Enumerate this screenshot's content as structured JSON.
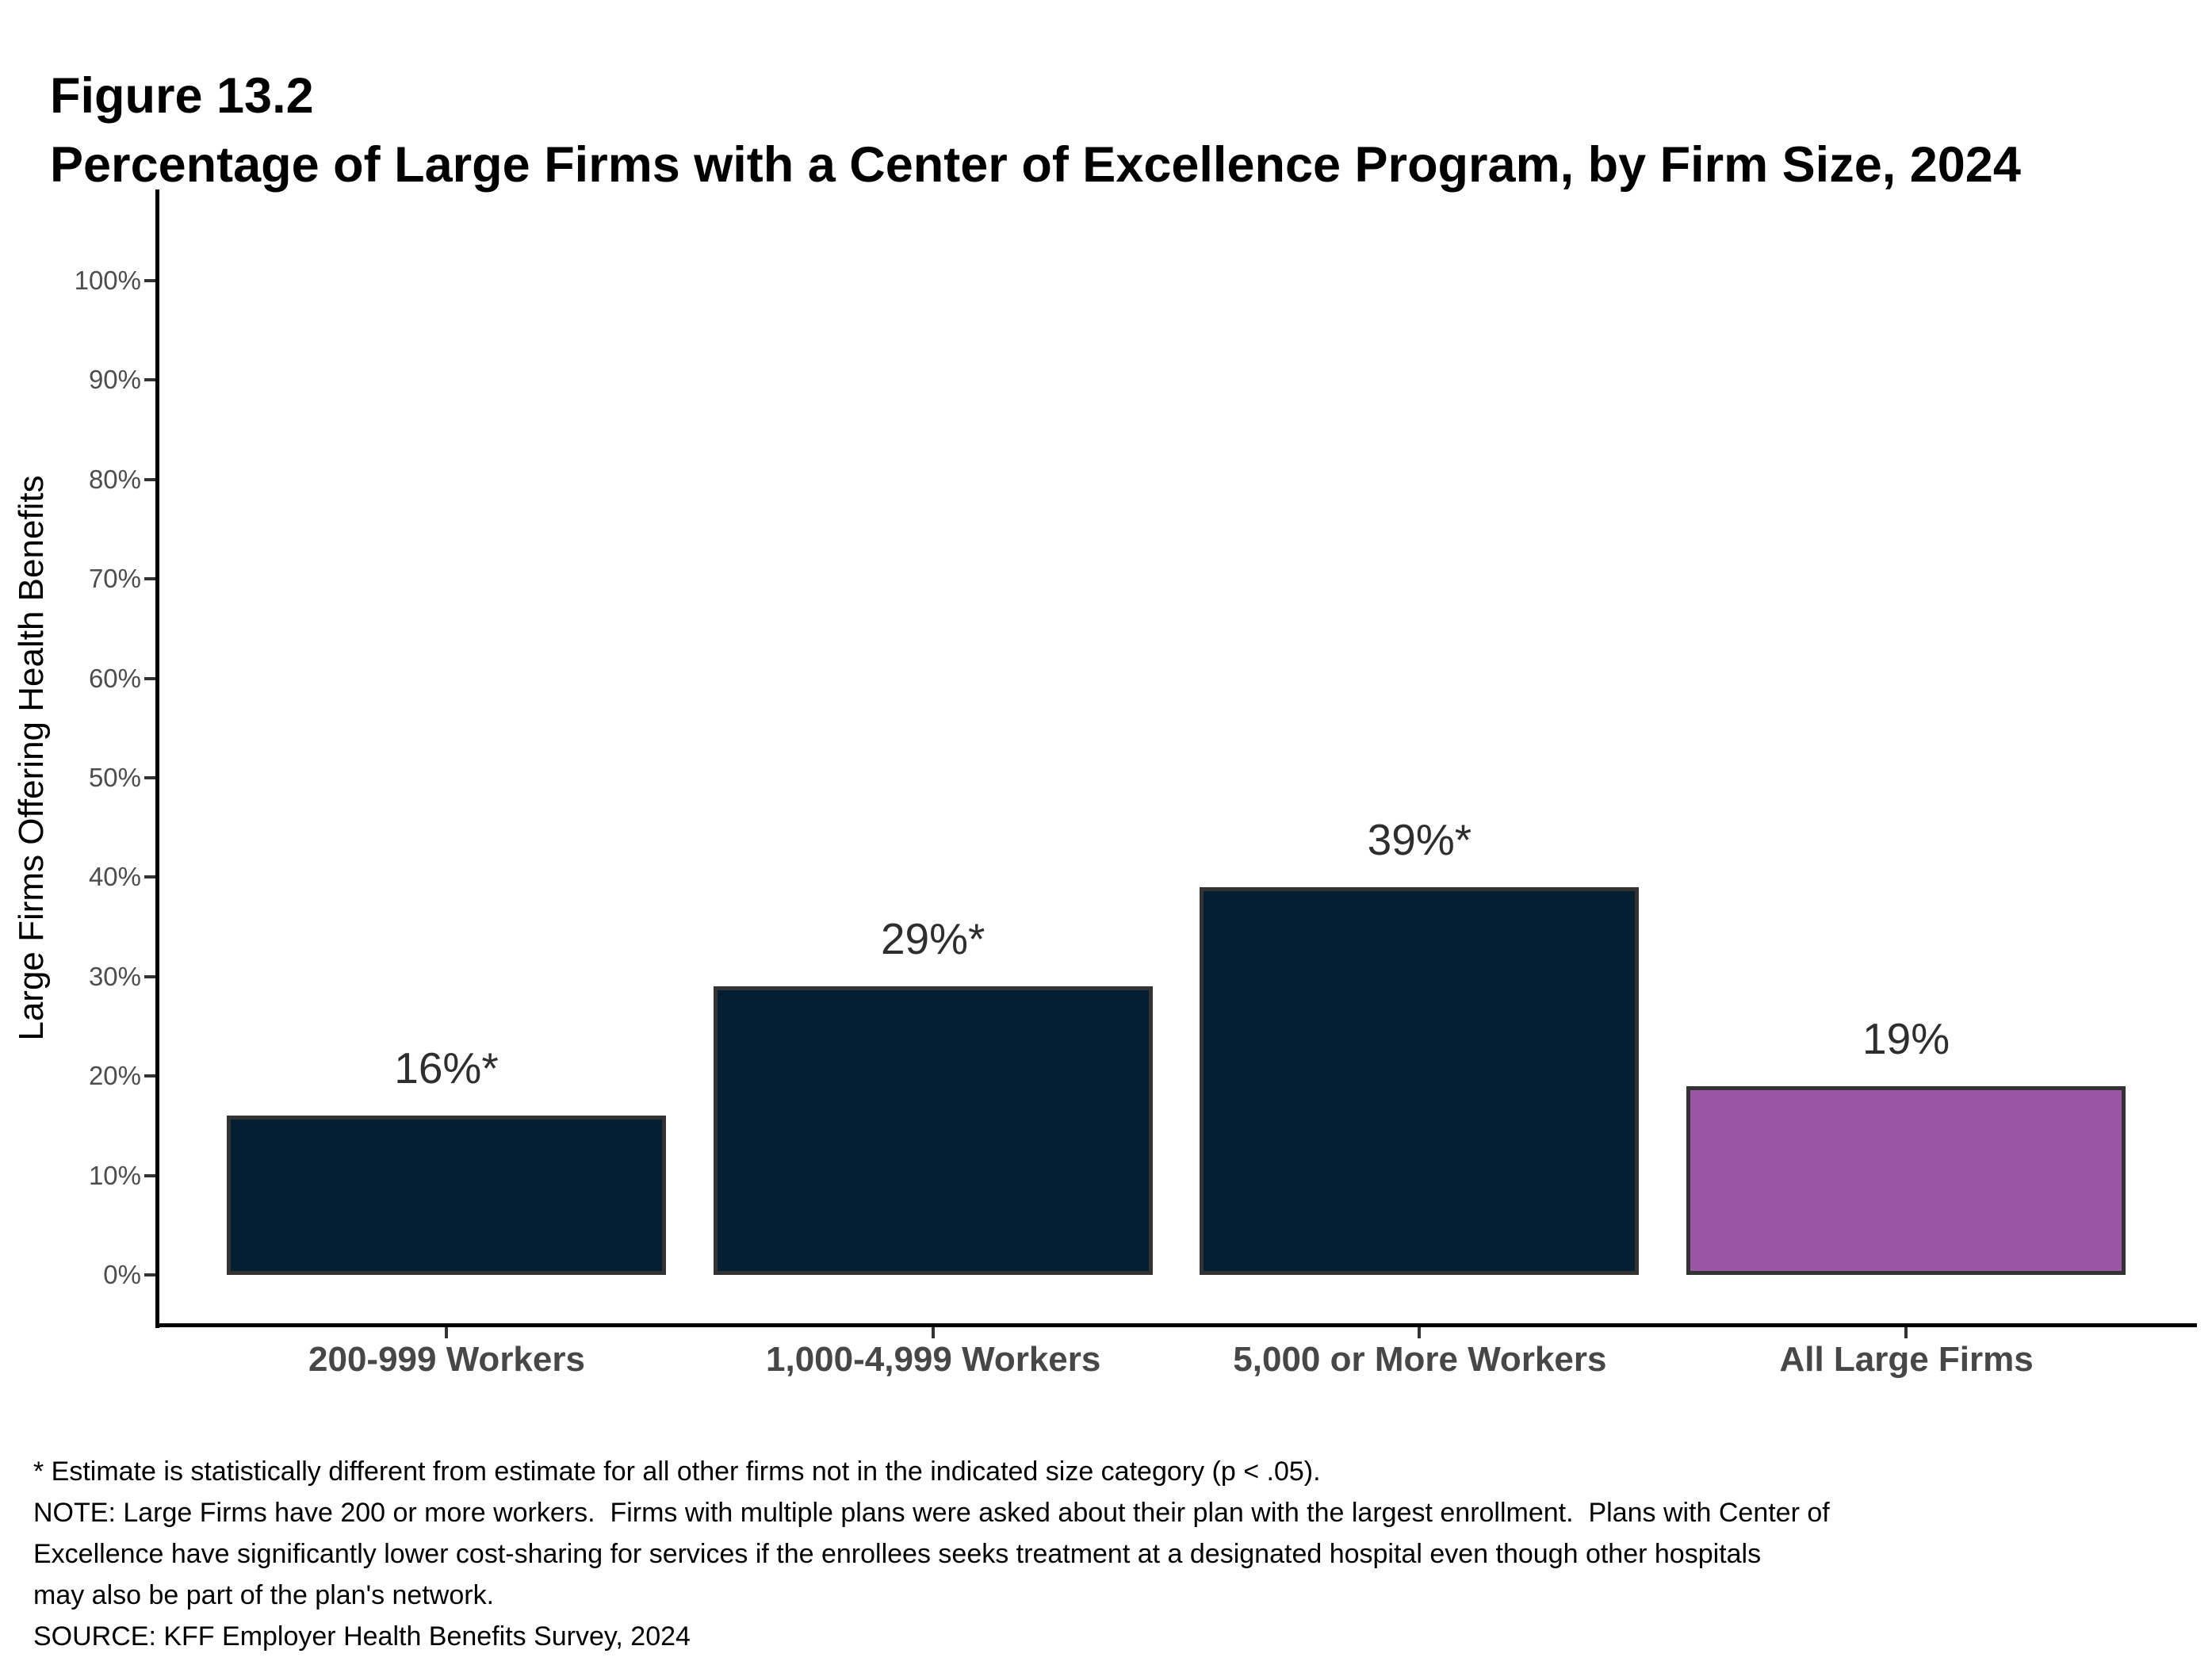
{
  "header": {
    "figure_label": "Figure 13.2",
    "title": "Percentage of Large Firms with a Center of Excellence Program, by Firm Size, 2024"
  },
  "chart_data": {
    "type": "bar",
    "categories": [
      "200-999 Workers",
      "1,000-4,999 Workers",
      "5,000 or More Workers",
      "All Large Firms"
    ],
    "values": [
      16,
      29,
      39,
      19
    ],
    "value_labels": [
      "16%*",
      "29%*",
      "39%*",
      "19%"
    ],
    "bar_colors": [
      "#041F31",
      "#041F31",
      "#041F31",
      "#9A55A4"
    ],
    "bar_border_color": "#333333",
    "title": "Percentage of Large Firms with a Center of Excellence Program, by Firm Size, 2024",
    "xlabel": "",
    "ylabel": "Large Firms Offering Health Benefits",
    "ylim": [
      0,
      100
    ],
    "ytick_step": 10,
    "ytick_suffix": "%",
    "grid": "off",
    "legend": "none"
  },
  "footnotes": {
    "lines": [
      "* Estimate is statistically different from estimate for all other firms not in the indicated size category (p < .05).",
      "NOTE: Large Firms have 200 or more workers.  Firms with multiple plans were asked about their plan with the largest enrollment.  Plans with Center of",
      "Excellence have significantly lower cost-sharing for services if the enrollees seeks treatment at a designated hospital even though other hospitals",
      "may also be part of the plan's network.",
      "SOURCE: KFF Employer Health Benefits Survey, 2024"
    ]
  }
}
